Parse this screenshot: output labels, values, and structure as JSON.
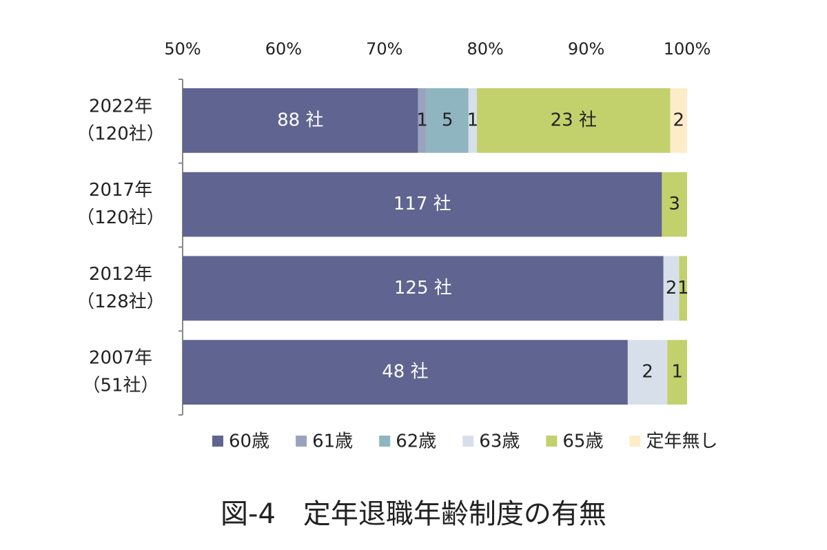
{
  "chart_data": {
    "type": "bar",
    "orientation": "horizontal",
    "stacking": "percent",
    "categories": [
      "2022年",
      "2017年",
      "2012年",
      "2007年"
    ],
    "category_sublabels": [
      "（120社）",
      "（120社）",
      "（128社）",
      "（51社）"
    ],
    "series": [
      {
        "name": "60歳",
        "color": "#5f6490",
        "values": [
          88,
          117,
          125,
          48
        ],
        "value_labels": [
          "88 社",
          "117 社",
          "125 社",
          "48 社"
        ]
      },
      {
        "name": "61歳",
        "color": "#9aa3bd",
        "values": [
          1,
          null,
          null,
          null
        ],
        "value_labels": [
          "1",
          null,
          null,
          null
        ]
      },
      {
        "name": "62歳",
        "color": "#8fb5c0",
        "values": [
          5,
          null,
          null,
          null
        ],
        "value_labels": [
          "5",
          null,
          null,
          null
        ]
      },
      {
        "name": "63歳",
        "color": "#d7e0ea",
        "values": [
          1,
          null,
          2,
          2
        ],
        "value_labels": [
          "1",
          null,
          "2",
          "2"
        ]
      },
      {
        "name": "65歳",
        "color": "#c2d16b",
        "values": [
          23,
          3,
          1,
          1
        ],
        "value_labels": [
          "23 社",
          "3",
          "1",
          "1"
        ]
      },
      {
        "name": "定年無し",
        "color": "#fdecc8",
        "values": [
          2,
          null,
          null,
          null
        ],
        "value_labels": [
          "2",
          null,
          null,
          null
        ]
      }
    ],
    "xlim": [
      50,
      100
    ],
    "xticks": [
      {
        "value": 50,
        "label": "50%"
      },
      {
        "value": 60,
        "label": "60%"
      },
      {
        "value": 70,
        "label": "70%"
      },
      {
        "value": 80,
        "label": "80%"
      },
      {
        "value": 90,
        "label": "90%"
      },
      {
        "value": 100,
        "label": "100%"
      }
    ],
    "legend": "bottom",
    "caption": "図-4　定年退職年齢制度の有無"
  }
}
